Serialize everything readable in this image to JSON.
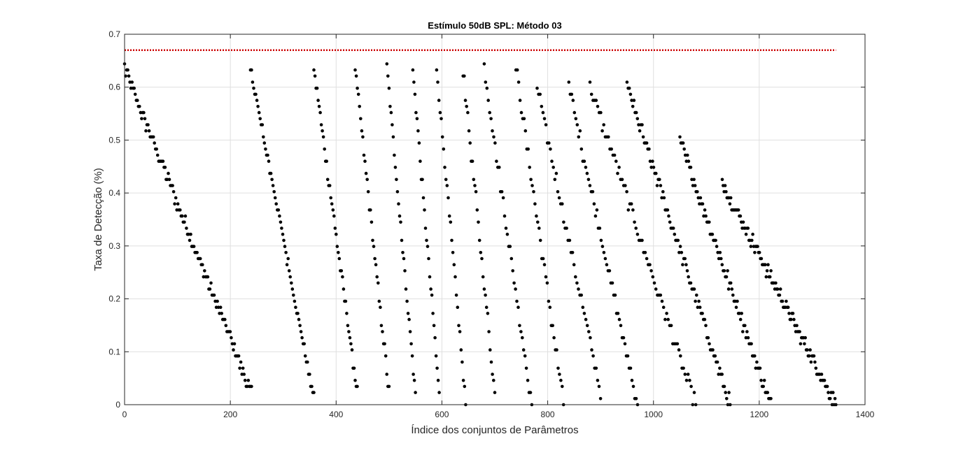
{
  "chart_data": {
    "type": "scatter",
    "title": "Estímulo 50dB SPL: Método 03",
    "xlabel": "Índice dos conjuntos de Parâmetros",
    "ylabel": "Taxa de Detecção (%)",
    "xlim": [
      0,
      1400
    ],
    "ylim": [
      0,
      0.7
    ],
    "xticks": [
      "0",
      "200",
      "400",
      "600",
      "800",
      "1000",
      "1200",
      "1400"
    ],
    "yticks": [
      "0",
      "0.1",
      "0.2",
      "0.3",
      "0.4",
      "0.5",
      "0.6",
      "0.7"
    ],
    "grid": true,
    "reference_line": {
      "y": 0.67,
      "style": "dotted",
      "color": "#cc0000"
    },
    "marker_color": "#000000",
    "clusters": [
      {
        "x_start": 0,
        "x_end": 240,
        "y_start": 0.635,
        "y_end": 0.022,
        "n": 120,
        "spread": 0.012
      },
      {
        "x_start": 238,
        "x_end": 358,
        "y_start": 0.635,
        "y_end": 0.012,
        "n": 60,
        "spread": 0.008
      },
      {
        "x_start": 358,
        "x_end": 440,
        "y_start": 0.635,
        "y_end": 0.022,
        "n": 42,
        "spread": 0.01
      },
      {
        "x_start": 436,
        "x_end": 500,
        "y_start": 0.635,
        "y_end": 0.022,
        "n": 32,
        "spread": 0.01
      },
      {
        "x_start": 496,
        "x_end": 550,
        "y_start": 0.635,
        "y_end": 0.022,
        "n": 28,
        "spread": 0.01
      },
      {
        "x_start": 545,
        "x_end": 595,
        "y_start": 0.635,
        "y_end": 0.022,
        "n": 26,
        "spread": 0.01
      },
      {
        "x_start": 590,
        "x_end": 645,
        "y_start": 0.635,
        "y_end": 0.0,
        "n": 26,
        "spread": 0.01
      },
      {
        "x_start": 640,
        "x_end": 700,
        "y_start": 0.635,
        "y_end": 0.022,
        "n": 28,
        "spread": 0.012
      },
      {
        "x_start": 680,
        "x_end": 770,
        "y_start": 0.635,
        "y_end": 0.0,
        "n": 36,
        "spread": 0.012
      },
      {
        "x_start": 740,
        "x_end": 830,
        "y_start": 0.635,
        "y_end": 0.0,
        "n": 36,
        "spread": 0.012
      },
      {
        "x_start": 780,
        "x_end": 900,
        "y_start": 0.6,
        "y_end": 0.022,
        "n": 44,
        "spread": 0.012
      },
      {
        "x_start": 840,
        "x_end": 970,
        "y_start": 0.6,
        "y_end": 0.0,
        "n": 50,
        "spread": 0.012
      },
      {
        "x_start": 880,
        "x_end": 1080,
        "y_start": 0.6,
        "y_end": 0.0,
        "n": 70,
        "spread": 0.012
      },
      {
        "x_start": 950,
        "x_end": 1145,
        "y_start": 0.6,
        "y_end": 0.0,
        "n": 90,
        "spread": 0.012
      },
      {
        "x_start": 1050,
        "x_end": 1222,
        "y_start": 0.5,
        "y_end": 0.0,
        "n": 85,
        "spread": 0.012
      },
      {
        "x_start": 1130,
        "x_end": 1345,
        "y_start": 0.42,
        "y_end": 0.0,
        "n": 120,
        "spread": 0.012
      }
    ]
  }
}
